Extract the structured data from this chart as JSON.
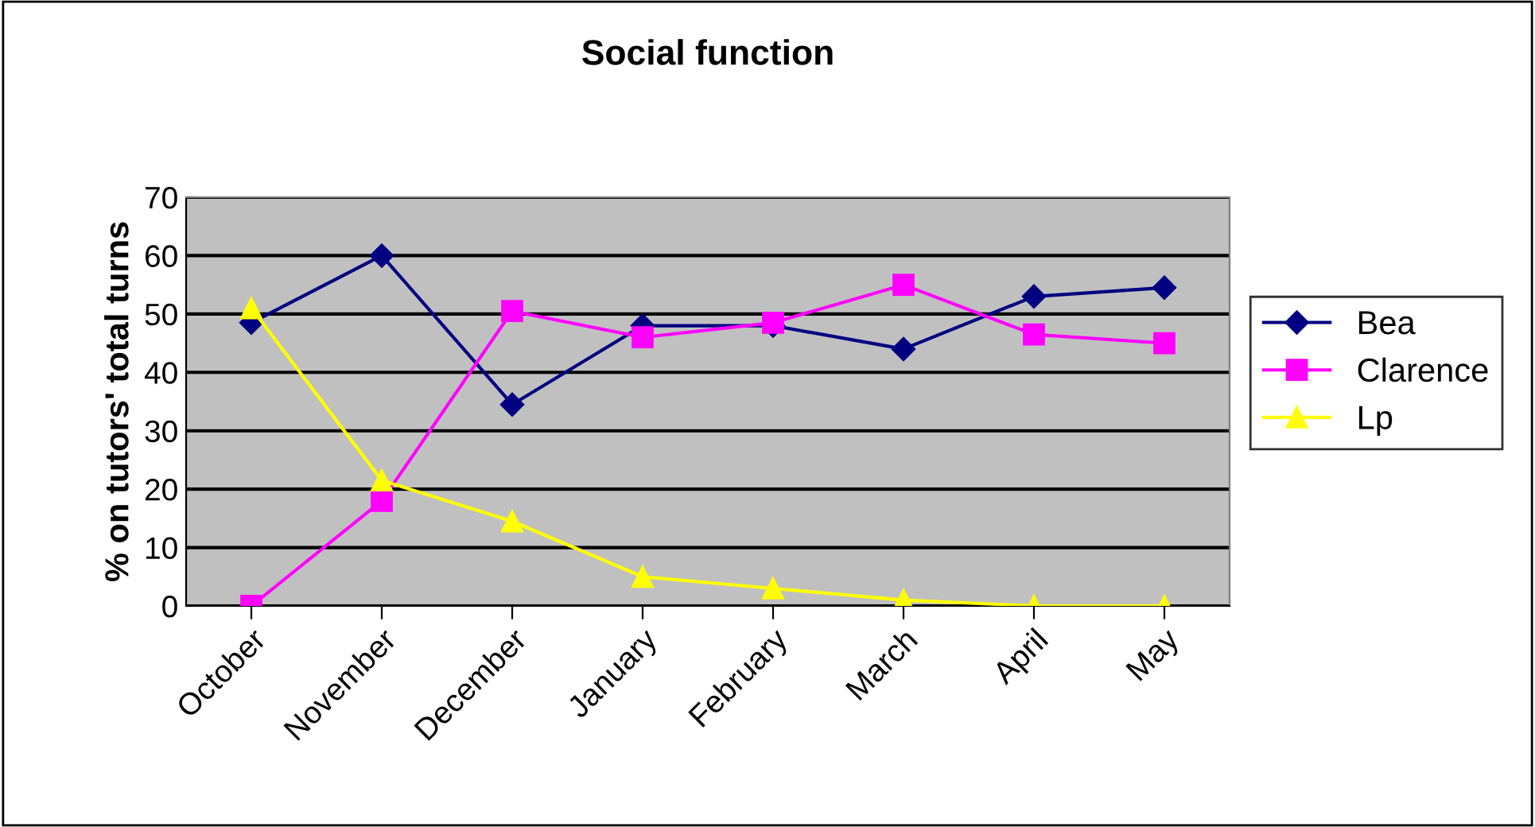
{
  "chart_data": {
    "type": "line",
    "title": "Social function",
    "ylabel": "% on tutors' total turns",
    "categories": [
      "October",
      "November",
      "December",
      "January",
      "February",
      "March",
      "April",
      "May"
    ],
    "series": [
      {
        "name": "Bea",
        "color": "#000080",
        "marker": "diamond",
        "values": [
          48.5,
          60,
          34.5,
          48,
          48,
          44,
          53,
          54.5
        ]
      },
      {
        "name": "Clarence",
        "color": "#ff00ff",
        "marker": "square",
        "values": [
          0,
          18,
          50.5,
          46,
          48.5,
          55,
          46.5,
          45
        ]
      },
      {
        "name": "Lp",
        "color": "#ffff00",
        "marker": "triangle",
        "values": [
          51,
          21.5,
          14.5,
          5,
          3,
          1,
          0,
          0
        ]
      }
    ],
    "ylim": [
      0,
      70
    ],
    "yticks": [
      0,
      10,
      20,
      30,
      40,
      50,
      60,
      70
    ],
    "grid": "y",
    "legend": "right"
  }
}
